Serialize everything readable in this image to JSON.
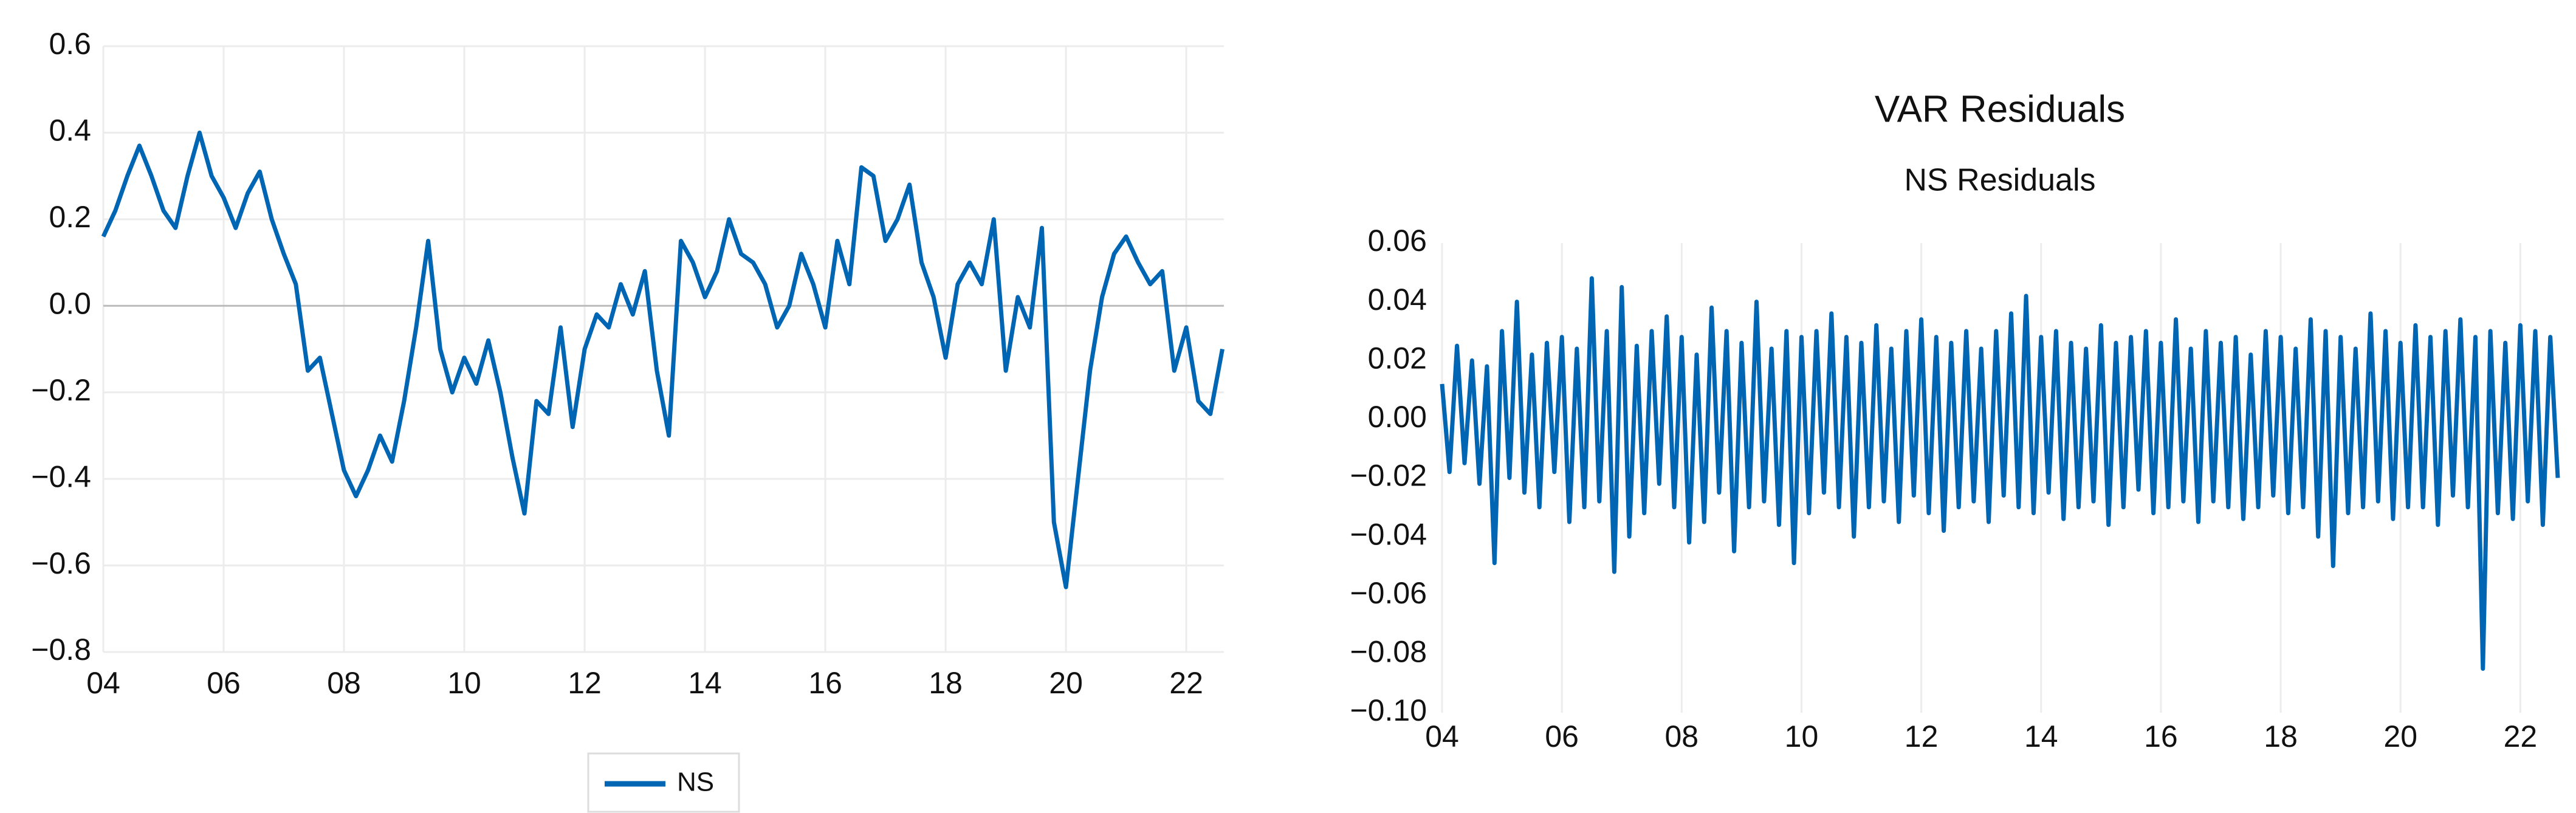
{
  "chart_data": [
    {
      "type": "line",
      "legend": "bottom",
      "grid": "both",
      "xlim": [
        2004,
        2022.625
      ],
      "ylim": [
        -0.8,
        0.6
      ],
      "xticks": [
        {
          "value": 2004,
          "label": "04"
        },
        {
          "value": 2006,
          "label": "06"
        },
        {
          "value": 2008,
          "label": "08"
        },
        {
          "value": 2010,
          "label": "10"
        },
        {
          "value": 2012,
          "label": "12"
        },
        {
          "value": 2014,
          "label": "14"
        },
        {
          "value": 2016,
          "label": "16"
        },
        {
          "value": 2018,
          "label": "18"
        },
        {
          "value": 2020,
          "label": "20"
        },
        {
          "value": 2022,
          "label": "22"
        }
      ],
      "yticks": [
        {
          "value": -0.8,
          "label": "−0.8"
        },
        {
          "value": -0.6,
          "label": "−0.6"
        },
        {
          "value": -0.4,
          "label": "−0.4"
        },
        {
          "value": -0.2,
          "label": "−0.2"
        },
        {
          "value": 0,
          "label": "0.0"
        },
        0.2,
        0.4,
        0.6
      ],
      "x": [
        2004.0,
        2004.2,
        2004.4,
        2004.6,
        2004.8,
        2005.0,
        2005.2,
        2005.4,
        2005.6,
        2005.8,
        2006.0,
        2006.2,
        2006.4,
        2006.6,
        2006.8,
        2007.0,
        2007.2,
        2007.4,
        2007.6,
        2007.8,
        2008.0,
        2008.2,
        2008.4,
        2008.6,
        2008.8,
        2009.0,
        2009.2,
        2009.4,
        2009.6,
        2009.8,
        2010.0,
        2010.2,
        2010.4,
        2010.6,
        2010.8,
        2011.0,
        2011.2,
        2011.4,
        2011.6,
        2011.8,
        2012.0,
        2012.2,
        2012.4,
        2012.6,
        2012.8,
        2013.0,
        2013.2,
        2013.4,
        2013.6,
        2013.8,
        2014.0,
        2014.2,
        2014.4,
        2014.6,
        2014.8,
        2015.0,
        2015.2,
        2015.4,
        2015.6,
        2015.8,
        2016.0,
        2016.2,
        2016.4,
        2016.6,
        2016.8,
        2017.0,
        2017.2,
        2017.4,
        2017.6,
        2017.8,
        2018.0,
        2018.2,
        2018.4,
        2018.6,
        2018.8,
        2019.0,
        2019.2,
        2019.4,
        2019.6,
        2019.8,
        2020.0,
        2020.2,
        2020.4,
        2020.6,
        2020.8,
        2021.0,
        2021.2,
        2021.4,
        2021.6,
        2021.8,
        2022.0,
        2022.2,
        2022.4,
        2022.6
      ],
      "series": [
        {
          "name": "NS",
          "color": "#0066b3",
          "values": [
            0.16,
            0.22,
            0.3,
            0.37,
            0.3,
            0.22,
            0.18,
            0.3,
            0.4,
            0.3,
            0.25,
            0.18,
            0.26,
            0.31,
            0.2,
            0.12,
            0.05,
            -0.15,
            -0.12,
            -0.25,
            -0.38,
            -0.44,
            -0.38,
            -0.3,
            -0.36,
            -0.22,
            -0.05,
            0.15,
            -0.1,
            -0.2,
            -0.12,
            -0.18,
            -0.08,
            -0.2,
            -0.35,
            -0.48,
            -0.22,
            -0.25,
            -0.05,
            -0.28,
            -0.1,
            -0.02,
            -0.05,
            0.05,
            -0.02,
            0.08,
            -0.15,
            -0.3,
            0.15,
            0.1,
            0.02,
            0.08,
            0.2,
            0.12,
            0.1,
            0.05,
            -0.05,
            0.0,
            0.12,
            0.05,
            -0.05,
            0.15,
            0.05,
            0.32,
            0.3,
            0.15,
            0.2,
            0.28,
            0.1,
            0.02,
            -0.12,
            0.05,
            0.1,
            0.05,
            0.2,
            -0.15,
            0.02,
            -0.05,
            0.18,
            -0.5,
            -0.65,
            -0.4,
            -0.15,
            0.02,
            0.12,
            0.16,
            0.1,
            0.05,
            0.08,
            -0.15,
            -0.05,
            -0.22,
            -0.25,
            -0.1
          ]
        }
      ]
    },
    {
      "type": "line",
      "grid": "x",
      "title": "VAR Residuals",
      "subtitle": "NS Residuals",
      "color": "#0066b3",
      "xlim": [
        2004,
        2022.625
      ],
      "ylim": [
        -0.1,
        0.06
      ],
      "xticks": [
        {
          "value": 2004,
          "label": "04"
        },
        {
          "value": 2006,
          "label": "06"
        },
        {
          "value": 2008,
          "label": "08"
        },
        {
          "value": 2010,
          "label": "10"
        },
        {
          "value": 2012,
          "label": "12"
        },
        {
          "value": 2014,
          "label": "14"
        },
        {
          "value": 2016,
          "label": "16"
        },
        {
          "value": 2018,
          "label": "18"
        },
        {
          "value": 2020,
          "label": "20"
        },
        {
          "value": 2022,
          "label": "22"
        }
      ],
      "yticks": [
        {
          "value": -0.1,
          "label": "−0.10"
        },
        {
          "value": -0.08,
          "label": "−0.08"
        },
        {
          "value": -0.06,
          "label": "−0.06"
        },
        {
          "value": -0.04,
          "label": "−0.04"
        },
        {
          "value": -0.02,
          "label": "−0.02"
        },
        {
          "value": 0,
          "label": "0.00"
        },
        0.02,
        0.04,
        0.06
      ],
      "x": [
        2004.0,
        2004.125,
        2004.25,
        2004.375,
        2004.5,
        2004.625,
        2004.75,
        2004.875,
        2005.0,
        2005.125,
        2005.25,
        2005.375,
        2005.5,
        2005.625,
        2005.75,
        2005.875,
        2006.0,
        2006.125,
        2006.25,
        2006.375,
        2006.5,
        2006.625,
        2006.75,
        2006.875,
        2007.0,
        2007.125,
        2007.25,
        2007.375,
        2007.5,
        2007.625,
        2007.75,
        2007.875,
        2008.0,
        2008.125,
        2008.25,
        2008.375,
        2008.5,
        2008.625,
        2008.75,
        2008.875,
        2009.0,
        2009.125,
        2009.25,
        2009.375,
        2009.5,
        2009.625,
        2009.75,
        2009.875,
        2010.0,
        2010.125,
        2010.25,
        2010.375,
        2010.5,
        2010.625,
        2010.75,
        2010.875,
        2011.0,
        2011.125,
        2011.25,
        2011.375,
        2011.5,
        2011.625,
        2011.75,
        2011.875,
        2012.0,
        2012.125,
        2012.25,
        2012.375,
        2012.5,
        2012.625,
        2012.75,
        2012.875,
        2013.0,
        2013.125,
        2013.25,
        2013.375,
        2013.5,
        2013.625,
        2013.75,
        2013.875,
        2014.0,
        2014.125,
        2014.25,
        2014.375,
        2014.5,
        2014.625,
        2014.75,
        2014.875,
        2015.0,
        2015.125,
        2015.25,
        2015.375,
        2015.5,
        2015.625,
        2015.75,
        2015.875,
        2016.0,
        2016.125,
        2016.25,
        2016.375,
        2016.5,
        2016.625,
        2016.75,
        2016.875,
        2017.0,
        2017.125,
        2017.25,
        2017.375,
        2017.5,
        2017.625,
        2017.75,
        2017.875,
        2018.0,
        2018.125,
        2018.25,
        2018.375,
        2018.5,
        2018.625,
        2018.75,
        2018.875,
        2019.0,
        2019.125,
        2019.25,
        2019.375,
        2019.5,
        2019.625,
        2019.75,
        2019.875,
        2020.0,
        2020.125,
        2020.25,
        2020.375,
        2020.5,
        2020.625,
        2020.75,
        2020.875,
        2021.0,
        2021.125,
        2021.25,
        2021.375,
        2021.5,
        2021.625,
        2021.75,
        2021.875,
        2022.0,
        2022.125,
        2022.25,
        2022.375,
        2022.5,
        2022.625
      ],
      "values": [
        0.012,
        -0.018,
        0.025,
        -0.015,
        0.02,
        -0.022,
        0.018,
        -0.049,
        0.03,
        -0.02,
        0.04,
        -0.025,
        0.022,
        -0.03,
        0.026,
        -0.018,
        0.028,
        -0.035,
        0.024,
        -0.03,
        0.048,
        -0.028,
        0.03,
        -0.052,
        0.045,
        -0.04,
        0.025,
        -0.032,
        0.03,
        -0.022,
        0.035,
        -0.03,
        0.028,
        -0.042,
        0.022,
        -0.035,
        0.038,
        -0.025,
        0.03,
        -0.045,
        0.026,
        -0.03,
        0.04,
        -0.028,
        0.024,
        -0.036,
        0.03,
        -0.049,
        0.028,
        -0.032,
        0.03,
        -0.025,
        0.036,
        -0.03,
        0.028,
        -0.04,
        0.026,
        -0.03,
        0.032,
        -0.028,
        0.024,
        -0.035,
        0.03,
        -0.026,
        0.034,
        -0.032,
        0.028,
        -0.038,
        0.026,
        -0.03,
        0.03,
        -0.028,
        0.024,
        -0.035,
        0.03,
        -0.026,
        0.036,
        -0.03,
        0.042,
        -0.032,
        0.028,
        -0.025,
        0.03,
        -0.034,
        0.026,
        -0.03,
        0.024,
        -0.028,
        0.032,
        -0.036,
        0.026,
        -0.03,
        0.028,
        -0.024,
        0.03,
        -0.032,
        0.026,
        -0.03,
        0.034,
        -0.028,
        0.024,
        -0.035,
        0.03,
        -0.028,
        0.026,
        -0.03,
        0.028,
        -0.034,
        0.022,
        -0.03,
        0.03,
        -0.026,
        0.028,
        -0.032,
        0.024,
        -0.03,
        0.034,
        -0.04,
        0.03,
        -0.05,
        0.028,
        -0.032,
        0.024,
        -0.03,
        0.036,
        -0.028,
        0.03,
        -0.034,
        0.026,
        -0.03,
        0.032,
        -0.03,
        0.028,
        -0.036,
        0.03,
        -0.026,
        0.034,
        -0.03,
        0.028,
        -0.085,
        0.03,
        -0.032,
        0.026,
        -0.034,
        0.032,
        -0.028,
        0.03,
        -0.036,
        0.028,
        -0.02
      ]
    }
  ]
}
